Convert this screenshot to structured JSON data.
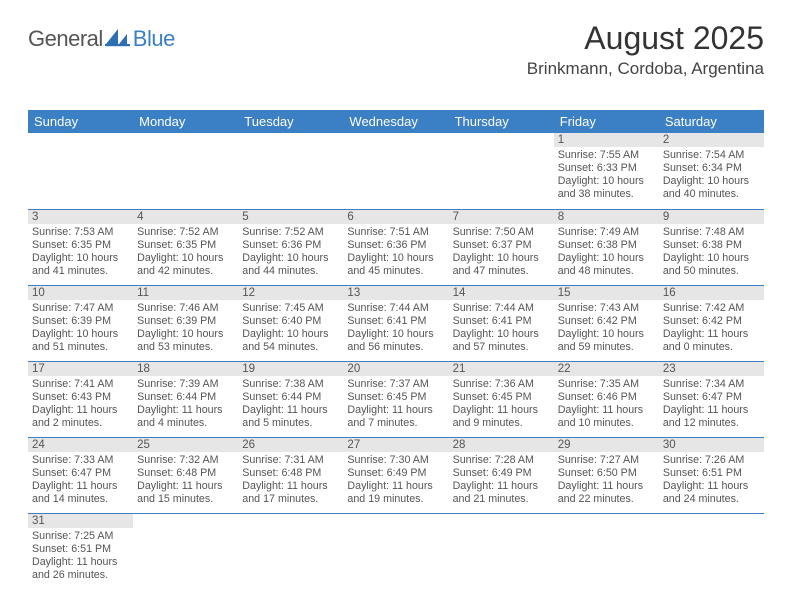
{
  "header": {
    "logo_left": "General",
    "logo_right": "Blue",
    "month_title": "August 2025",
    "location": "Brinkmann, Cordoba, Argentina"
  },
  "colors": {
    "brand_blue": "#3b7fc4",
    "header_bg": "#3b7fc4",
    "header_text": "#ffffff",
    "daynum_bg": "#e6e6e6",
    "text": "#555555",
    "rule": "#3b7fc4",
    "page_bg": "#ffffff"
  },
  "calendar": {
    "type": "table",
    "day_headers": [
      "Sunday",
      "Monday",
      "Tuesday",
      "Wednesday",
      "Thursday",
      "Friday",
      "Saturday"
    ],
    "header_fontsize": 13,
    "daynum_fontsize": 11.5,
    "detail_fontsize": 10.7,
    "weeks": [
      [
        null,
        null,
        null,
        null,
        null,
        {
          "num": "1",
          "sunrise": "Sunrise: 7:55 AM",
          "sunset": "Sunset: 6:33 PM",
          "daylight1": "Daylight: 10 hours",
          "daylight2": "and 38 minutes."
        },
        {
          "num": "2",
          "sunrise": "Sunrise: 7:54 AM",
          "sunset": "Sunset: 6:34 PM",
          "daylight1": "Daylight: 10 hours",
          "daylight2": "and 40 minutes."
        }
      ],
      [
        {
          "num": "3",
          "sunrise": "Sunrise: 7:53 AM",
          "sunset": "Sunset: 6:35 PM",
          "daylight1": "Daylight: 10 hours",
          "daylight2": "and 41 minutes."
        },
        {
          "num": "4",
          "sunrise": "Sunrise: 7:52 AM",
          "sunset": "Sunset: 6:35 PM",
          "daylight1": "Daylight: 10 hours",
          "daylight2": "and 42 minutes."
        },
        {
          "num": "5",
          "sunrise": "Sunrise: 7:52 AM",
          "sunset": "Sunset: 6:36 PM",
          "daylight1": "Daylight: 10 hours",
          "daylight2": "and 44 minutes."
        },
        {
          "num": "6",
          "sunrise": "Sunrise: 7:51 AM",
          "sunset": "Sunset: 6:36 PM",
          "daylight1": "Daylight: 10 hours",
          "daylight2": "and 45 minutes."
        },
        {
          "num": "7",
          "sunrise": "Sunrise: 7:50 AM",
          "sunset": "Sunset: 6:37 PM",
          "daylight1": "Daylight: 10 hours",
          "daylight2": "and 47 minutes."
        },
        {
          "num": "8",
          "sunrise": "Sunrise: 7:49 AM",
          "sunset": "Sunset: 6:38 PM",
          "daylight1": "Daylight: 10 hours",
          "daylight2": "and 48 minutes."
        },
        {
          "num": "9",
          "sunrise": "Sunrise: 7:48 AM",
          "sunset": "Sunset: 6:38 PM",
          "daylight1": "Daylight: 10 hours",
          "daylight2": "and 50 minutes."
        }
      ],
      [
        {
          "num": "10",
          "sunrise": "Sunrise: 7:47 AM",
          "sunset": "Sunset: 6:39 PM",
          "daylight1": "Daylight: 10 hours",
          "daylight2": "and 51 minutes."
        },
        {
          "num": "11",
          "sunrise": "Sunrise: 7:46 AM",
          "sunset": "Sunset: 6:39 PM",
          "daylight1": "Daylight: 10 hours",
          "daylight2": "and 53 minutes."
        },
        {
          "num": "12",
          "sunrise": "Sunrise: 7:45 AM",
          "sunset": "Sunset: 6:40 PM",
          "daylight1": "Daylight: 10 hours",
          "daylight2": "and 54 minutes."
        },
        {
          "num": "13",
          "sunrise": "Sunrise: 7:44 AM",
          "sunset": "Sunset: 6:41 PM",
          "daylight1": "Daylight: 10 hours",
          "daylight2": "and 56 minutes."
        },
        {
          "num": "14",
          "sunrise": "Sunrise: 7:44 AM",
          "sunset": "Sunset: 6:41 PM",
          "daylight1": "Daylight: 10 hours",
          "daylight2": "and 57 minutes."
        },
        {
          "num": "15",
          "sunrise": "Sunrise: 7:43 AM",
          "sunset": "Sunset: 6:42 PM",
          "daylight1": "Daylight: 10 hours",
          "daylight2": "and 59 minutes."
        },
        {
          "num": "16",
          "sunrise": "Sunrise: 7:42 AM",
          "sunset": "Sunset: 6:42 PM",
          "daylight1": "Daylight: 11 hours",
          "daylight2": "and 0 minutes."
        }
      ],
      [
        {
          "num": "17",
          "sunrise": "Sunrise: 7:41 AM",
          "sunset": "Sunset: 6:43 PM",
          "daylight1": "Daylight: 11 hours",
          "daylight2": "and 2 minutes."
        },
        {
          "num": "18",
          "sunrise": "Sunrise: 7:39 AM",
          "sunset": "Sunset: 6:44 PM",
          "daylight1": "Daylight: 11 hours",
          "daylight2": "and 4 minutes."
        },
        {
          "num": "19",
          "sunrise": "Sunrise: 7:38 AM",
          "sunset": "Sunset: 6:44 PM",
          "daylight1": "Daylight: 11 hours",
          "daylight2": "and 5 minutes."
        },
        {
          "num": "20",
          "sunrise": "Sunrise: 7:37 AM",
          "sunset": "Sunset: 6:45 PM",
          "daylight1": "Daylight: 11 hours",
          "daylight2": "and 7 minutes."
        },
        {
          "num": "21",
          "sunrise": "Sunrise: 7:36 AM",
          "sunset": "Sunset: 6:45 PM",
          "daylight1": "Daylight: 11 hours",
          "daylight2": "and 9 minutes."
        },
        {
          "num": "22",
          "sunrise": "Sunrise: 7:35 AM",
          "sunset": "Sunset: 6:46 PM",
          "daylight1": "Daylight: 11 hours",
          "daylight2": "and 10 minutes."
        },
        {
          "num": "23",
          "sunrise": "Sunrise: 7:34 AM",
          "sunset": "Sunset: 6:47 PM",
          "daylight1": "Daylight: 11 hours",
          "daylight2": "and 12 minutes."
        }
      ],
      [
        {
          "num": "24",
          "sunrise": "Sunrise: 7:33 AM",
          "sunset": "Sunset: 6:47 PM",
          "daylight1": "Daylight: 11 hours",
          "daylight2": "and 14 minutes."
        },
        {
          "num": "25",
          "sunrise": "Sunrise: 7:32 AM",
          "sunset": "Sunset: 6:48 PM",
          "daylight1": "Daylight: 11 hours",
          "daylight2": "and 15 minutes."
        },
        {
          "num": "26",
          "sunrise": "Sunrise: 7:31 AM",
          "sunset": "Sunset: 6:48 PM",
          "daylight1": "Daylight: 11 hours",
          "daylight2": "and 17 minutes."
        },
        {
          "num": "27",
          "sunrise": "Sunrise: 7:30 AM",
          "sunset": "Sunset: 6:49 PM",
          "daylight1": "Daylight: 11 hours",
          "daylight2": "and 19 minutes."
        },
        {
          "num": "28",
          "sunrise": "Sunrise: 7:28 AM",
          "sunset": "Sunset: 6:49 PM",
          "daylight1": "Daylight: 11 hours",
          "daylight2": "and 21 minutes."
        },
        {
          "num": "29",
          "sunrise": "Sunrise: 7:27 AM",
          "sunset": "Sunset: 6:50 PM",
          "daylight1": "Daylight: 11 hours",
          "daylight2": "and 22 minutes."
        },
        {
          "num": "30",
          "sunrise": "Sunrise: 7:26 AM",
          "sunset": "Sunset: 6:51 PM",
          "daylight1": "Daylight: 11 hours",
          "daylight2": "and 24 minutes."
        }
      ],
      [
        {
          "num": "31",
          "sunrise": "Sunrise: 7:25 AM",
          "sunset": "Sunset: 6:51 PM",
          "daylight1": "Daylight: 11 hours",
          "daylight2": "and 26 minutes."
        },
        null,
        null,
        null,
        null,
        null,
        null
      ]
    ]
  }
}
